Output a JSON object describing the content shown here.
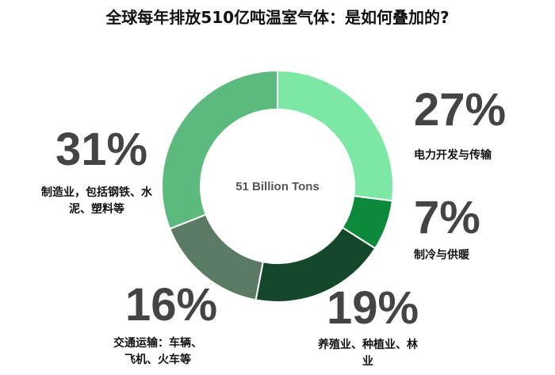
{
  "chart_data": {
    "type": "donut",
    "title": "全球每年排放510亿吨温室气体：是如何叠加的?",
    "center_text": "51 Billion Tons",
    "categories": [
      "电力开发与传输",
      "制冷与供暖",
      "养殖业、种植业、林业",
      "交通运输：车辆、飞机、火车等",
      "制造业，包括钢铁、水泥、塑料等"
    ],
    "values": [
      27,
      7,
      19,
      16,
      31
    ],
    "value_labels": [
      "27%",
      "7%",
      "19%",
      "16%",
      "31%"
    ],
    "colors": [
      "#7de8a6",
      "#0b8a3b",
      "#15472b",
      "#5a7a63",
      "#5cba7f"
    ]
  }
}
